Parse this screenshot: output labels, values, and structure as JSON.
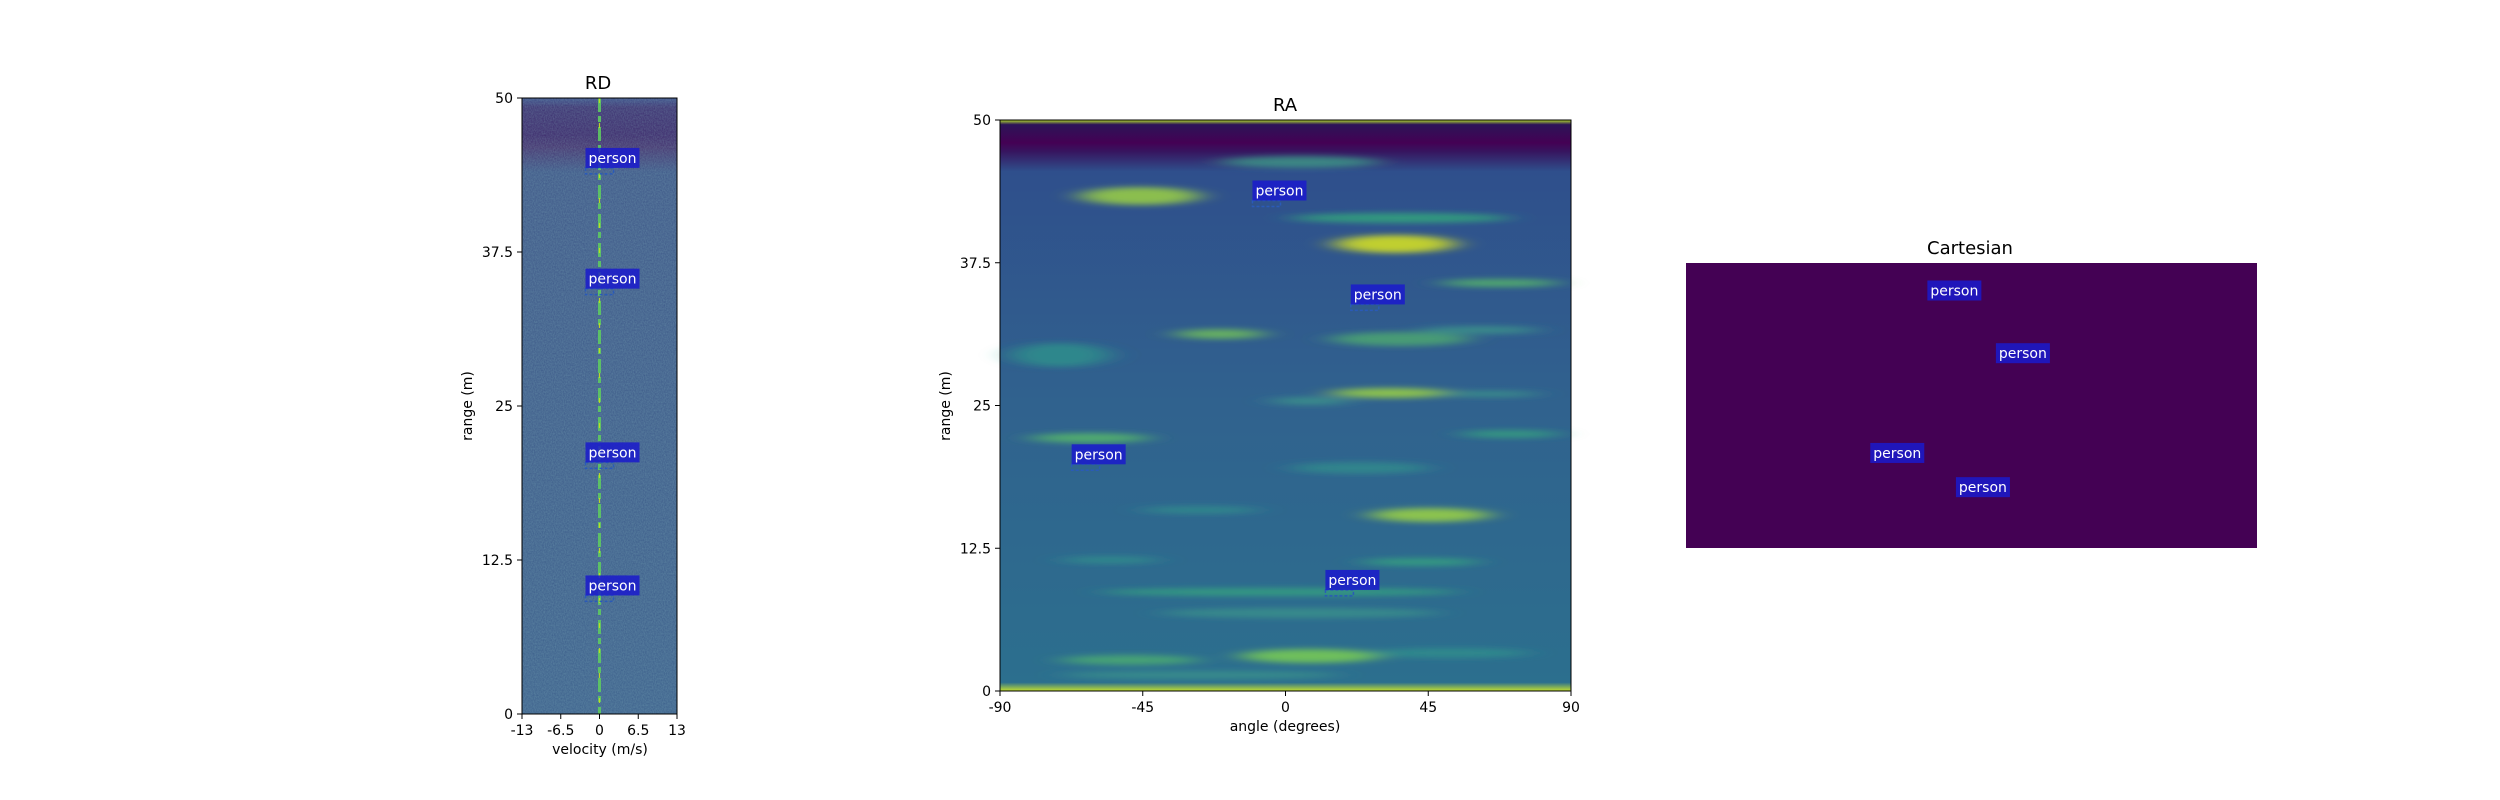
{
  "colors": {
    "tag_bg": "#1a1acc",
    "cartesian_bg": "#440154"
  },
  "chart_data": [
    {
      "type": "heatmap",
      "title": "RD",
      "xlabel": "velocity (m/s)",
      "ylabel": "range (m)",
      "xlim": [
        -13,
        13
      ],
      "ylim": [
        0,
        50
      ],
      "xticks": [
        "-13",
        "-6.5",
        "0",
        "6.5",
        "13"
      ],
      "yticks": [
        "0",
        "12.5",
        "25",
        "37.5",
        "50"
      ],
      "colormap": "viridis",
      "detections": [
        {
          "label": "person",
          "x": 0,
          "y": 44
        },
        {
          "label": "person",
          "x": 0,
          "y": 34.2
        },
        {
          "label": "person",
          "x": 0,
          "y": 20.1
        },
        {
          "label": "person",
          "x": 0,
          "y": 9.3
        }
      ]
    },
    {
      "type": "heatmap",
      "title": "RA",
      "xlabel": "angle (degrees)",
      "ylabel": "range (m)",
      "xlim": [
        -90,
        90
      ],
      "ylim": [
        0,
        50
      ],
      "xticks": [
        "-90",
        "-45",
        "0",
        "45",
        "90"
      ],
      "yticks": [
        "0",
        "12.5",
        "25",
        "37.5",
        "50"
      ],
      "colormap": "viridis",
      "detections": [
        {
          "label": "person",
          "x": -6,
          "y": 42.6
        },
        {
          "label": "person",
          "x": 25,
          "y": 33.5
        },
        {
          "label": "person",
          "x": -63,
          "y": 19.5
        },
        {
          "label": "person",
          "x": 17,
          "y": 8.5
        }
      ]
    },
    {
      "type": "heatmap",
      "title": "Cartesian",
      "detections": [
        {
          "label": "person",
          "x": 0.47,
          "y": 0.9
        },
        {
          "label": "person",
          "x": 0.59,
          "y": 0.68
        },
        {
          "label": "person",
          "x": 0.37,
          "y": 0.33
        },
        {
          "label": "person",
          "x": 0.52,
          "y": 0.21
        }
      ]
    }
  ]
}
